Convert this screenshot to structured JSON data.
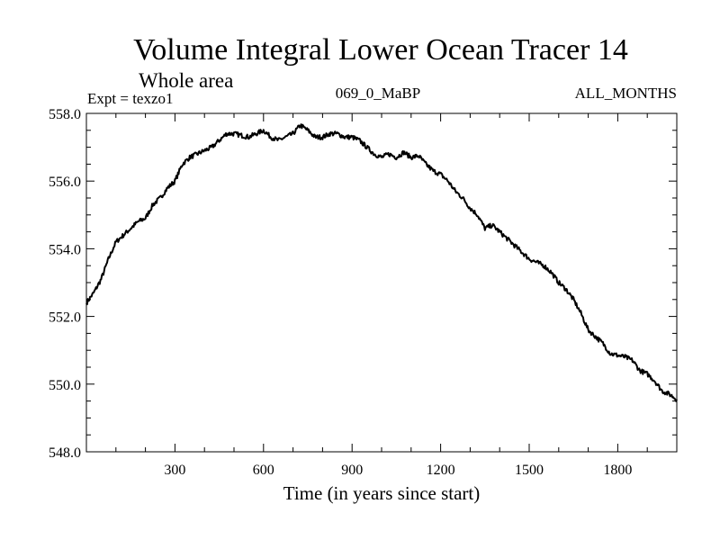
{
  "chart_data": {
    "type": "line",
    "title": "Volume Integral Lower Ocean Tracer 14",
    "subtitle": "Whole area",
    "annotations": {
      "left": "Expt = texzo1",
      "center": "069_0_MaBP",
      "right": "ALL_MONTHS"
    },
    "xlabel": "Time (in years since start)",
    "ylabel": "",
    "xlim": [
      0,
      2000
    ],
    "ylim": [
      548.0,
      558.0
    ],
    "x_major_ticks": [
      300,
      600,
      900,
      1200,
      1500,
      1800
    ],
    "x_tick_labels": [
      "300",
      "600",
      "900",
      "1200",
      "1500",
      "1800"
    ],
    "x_minor_step": 100,
    "y_major_ticks": [
      548.0,
      550.0,
      552.0,
      554.0,
      556.0,
      558.0
    ],
    "y_tick_labels": [
      "548.0",
      "550.0",
      "552.0",
      "554.0",
      "556.0",
      "558.0"
    ],
    "y_minor_step": 0.5,
    "grid": false,
    "series": [
      {
        "name": "Volume Integral Lower Ocean Tracer 14",
        "color": "#000000",
        "x": [
          0,
          25,
          50,
          75,
          100,
          125,
          150,
          175,
          200,
          225,
          250,
          275,
          300,
          325,
          350,
          375,
          400,
          425,
          450,
          475,
          500,
          525,
          550,
          575,
          600,
          625,
          650,
          675,
          700,
          725,
          750,
          775,
          800,
          825,
          850,
          875,
          900,
          925,
          950,
          975,
          1000,
          1025,
          1050,
          1075,
          1100,
          1125,
          1150,
          1175,
          1200,
          1225,
          1250,
          1275,
          1300,
          1325,
          1350,
          1375,
          1400,
          1425,
          1450,
          1475,
          1500,
          1525,
          1550,
          1575,
          1600,
          1625,
          1650,
          1675,
          1700,
          1725,
          1750,
          1775,
          1800,
          1825,
          1850,
          1875,
          1900,
          1925,
          1950,
          1975,
          2000
        ],
        "values": [
          552.4,
          552.7,
          553.1,
          553.7,
          554.2,
          554.4,
          554.6,
          554.8,
          554.9,
          555.3,
          555.5,
          555.8,
          556.0,
          556.5,
          556.7,
          556.8,
          556.9,
          557.0,
          557.2,
          557.4,
          557.4,
          557.35,
          557.3,
          557.4,
          557.5,
          557.3,
          557.2,
          557.3,
          557.4,
          557.65,
          557.5,
          557.3,
          557.3,
          557.4,
          557.4,
          557.3,
          557.3,
          557.2,
          557.0,
          556.8,
          556.7,
          556.8,
          556.7,
          556.85,
          556.7,
          556.75,
          556.5,
          556.3,
          556.2,
          556.0,
          555.7,
          555.5,
          555.2,
          555.0,
          554.6,
          554.7,
          554.5,
          554.3,
          554.1,
          553.9,
          553.7,
          553.6,
          553.5,
          553.3,
          553.0,
          552.8,
          552.5,
          552.1,
          551.6,
          551.4,
          551.2,
          550.9,
          550.85,
          550.8,
          550.7,
          550.4,
          550.3,
          550.1,
          549.8,
          549.7,
          549.55
        ]
      }
    ]
  }
}
